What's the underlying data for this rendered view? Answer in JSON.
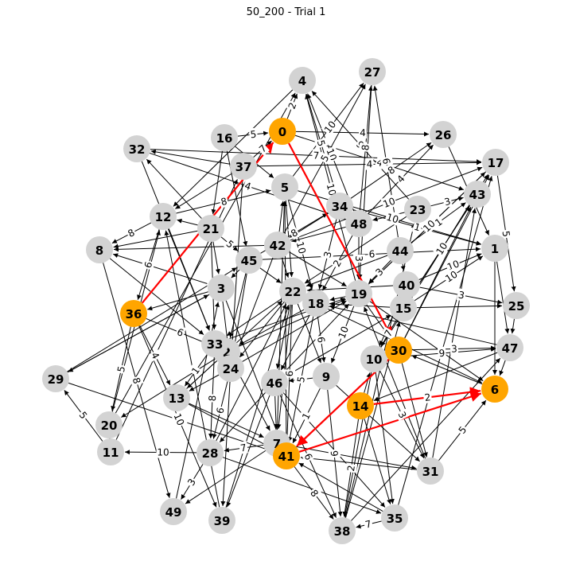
{
  "title": "50_200 - Trial 1",
  "colors": {
    "node_default": "#d3d3d3",
    "node_path": "#ffa500",
    "edge_default": "#000000",
    "edge_path": "#ff0000",
    "label_bg": "#ffffff"
  },
  "nodes": [
    {
      "id": "0",
      "path": true
    },
    {
      "id": "1",
      "path": false
    },
    {
      "id": "2",
      "path": false
    },
    {
      "id": "3",
      "path": false
    },
    {
      "id": "4",
      "path": false
    },
    {
      "id": "5",
      "path": false
    },
    {
      "id": "6",
      "path": true
    },
    {
      "id": "7",
      "path": false
    },
    {
      "id": "8",
      "path": false
    },
    {
      "id": "9",
      "path": false
    },
    {
      "id": "10",
      "path": false
    },
    {
      "id": "11",
      "path": false
    },
    {
      "id": "12",
      "path": false
    },
    {
      "id": "13",
      "path": false
    },
    {
      "id": "14",
      "path": true
    },
    {
      "id": "15",
      "path": false
    },
    {
      "id": "16",
      "path": false
    },
    {
      "id": "17",
      "path": false
    },
    {
      "id": "18",
      "path": false
    },
    {
      "id": "19",
      "path": false
    },
    {
      "id": "20",
      "path": false
    },
    {
      "id": "21",
      "path": false
    },
    {
      "id": "22",
      "path": false
    },
    {
      "id": "23",
      "path": false
    },
    {
      "id": "24",
      "path": false
    },
    {
      "id": "25",
      "path": false
    },
    {
      "id": "26",
      "path": false
    },
    {
      "id": "27",
      "path": false
    },
    {
      "id": "28",
      "path": false
    },
    {
      "id": "29",
      "path": false
    },
    {
      "id": "30",
      "path": true
    },
    {
      "id": "31",
      "path": false
    },
    {
      "id": "32",
      "path": false
    },
    {
      "id": "33",
      "path": false
    },
    {
      "id": "34",
      "path": false
    },
    {
      "id": "35",
      "path": false
    },
    {
      "id": "36",
      "path": true
    },
    {
      "id": "37",
      "path": false
    },
    {
      "id": "38",
      "path": false
    },
    {
      "id": "39",
      "path": false
    },
    {
      "id": "40",
      "path": false
    },
    {
      "id": "41",
      "path": true
    },
    {
      "id": "42",
      "path": false
    },
    {
      "id": "43",
      "path": false
    },
    {
      "id": "44",
      "path": false
    },
    {
      "id": "45",
      "path": false
    },
    {
      "id": "46",
      "path": false
    },
    {
      "id": "47",
      "path": false
    },
    {
      "id": "48",
      "path": false
    },
    {
      "id": "49",
      "path": false
    }
  ],
  "edges": [
    {
      "from": "36",
      "to": "0",
      "w": "5",
      "path": true
    },
    {
      "from": "0",
      "to": "30",
      "w": "",
      "path": true
    },
    {
      "from": "30",
      "to": "41",
      "w": "",
      "path": true
    },
    {
      "from": "41",
      "to": "6",
      "w": "",
      "path": true
    },
    {
      "from": "14",
      "to": "6",
      "w": "2",
      "path": true
    },
    {
      "from": "0",
      "to": "26",
      "w": "4",
      "path": false
    },
    {
      "from": "0",
      "to": "43",
      "w": "4",
      "path": false
    },
    {
      "from": "0",
      "to": "4",
      "w": "2",
      "path": false
    },
    {
      "from": "16",
      "to": "0",
      "w": "5",
      "path": false
    },
    {
      "from": "37",
      "to": "0",
      "w": "7",
      "path": false
    },
    {
      "from": "48",
      "to": "4",
      "w": "10",
      "path": false
    },
    {
      "from": "34",
      "to": "4",
      "w": "5",
      "path": false
    },
    {
      "from": "19",
      "to": "4",
      "w": "10",
      "path": false
    },
    {
      "from": "23",
      "to": "4",
      "w": "9",
      "path": false
    },
    {
      "from": "4",
      "to": "12",
      "w": "",
      "path": false
    },
    {
      "from": "48",
      "to": "27",
      "w": "8",
      "path": false
    },
    {
      "from": "5",
      "to": "27",
      "w": "10",
      "path": false
    },
    {
      "from": "42",
      "to": "27",
      "w": "5",
      "path": false
    },
    {
      "from": "44",
      "to": "27",
      "w": "6",
      "path": false
    },
    {
      "from": "34",
      "to": "26",
      "w": "8",
      "path": false
    },
    {
      "from": "48",
      "to": "26",
      "w": "4",
      "path": false
    },
    {
      "from": "32",
      "to": "17",
      "w": "7",
      "path": false
    },
    {
      "from": "37",
      "to": "17",
      "w": "4",
      "path": false
    },
    {
      "from": "42",
      "to": "17",
      "w": "10",
      "path": false
    },
    {
      "from": "19",
      "to": "17",
      "w": "10",
      "path": false
    },
    {
      "from": "23",
      "to": "43",
      "w": "3",
      "path": false
    },
    {
      "from": "44",
      "to": "43",
      "w": "1",
      "path": false
    },
    {
      "from": "15",
      "to": "43",
      "w": "10",
      "path": false
    },
    {
      "from": "17",
      "to": "25",
      "w": "5",
      "path": false
    },
    {
      "from": "5",
      "to": "1",
      "w": "10",
      "path": false
    },
    {
      "from": "34",
      "to": "1",
      "w": "1",
      "path": false
    },
    {
      "from": "45",
      "to": "1",
      "w": "6",
      "path": false
    },
    {
      "from": "40",
      "to": "1",
      "w": "10",
      "path": false
    },
    {
      "from": "15",
      "to": "1",
      "w": "10",
      "path": false
    },
    {
      "from": "1",
      "to": "47",
      "w": "",
      "path": false
    },
    {
      "from": "1",
      "to": "6",
      "w": "",
      "path": false
    },
    {
      "from": "40",
      "to": "25",
      "w": "3",
      "path": false
    },
    {
      "from": "15",
      "to": "25",
      "w": "",
      "path": false
    },
    {
      "from": "25",
      "to": "47",
      "w": "",
      "path": false
    },
    {
      "from": "30",
      "to": "47",
      "w": "3",
      "path": false
    },
    {
      "from": "10",
      "to": "47",
      "w": "9",
      "path": false
    },
    {
      "from": "47",
      "to": "6",
      "w": "",
      "path": false
    },
    {
      "from": "19",
      "to": "6",
      "w": "",
      "path": false
    },
    {
      "from": "18",
      "to": "6",
      "w": "",
      "path": false
    },
    {
      "from": "31",
      "to": "6",
      "w": "5",
      "path": false
    },
    {
      "from": "12",
      "to": "8",
      "w": "8",
      "path": false
    },
    {
      "from": "21",
      "to": "8",
      "w": "",
      "path": false
    },
    {
      "from": "42",
      "to": "8",
      "w": "",
      "path": false
    },
    {
      "from": "8",
      "to": "49",
      "w": "8",
      "path": false
    },
    {
      "from": "32",
      "to": "48",
      "w": "4",
      "path": false
    },
    {
      "from": "12",
      "to": "5",
      "w": "8",
      "path": false
    },
    {
      "from": "21",
      "to": "12",
      "w": "",
      "path": false
    },
    {
      "from": "21",
      "to": "32",
      "w": "",
      "path": false
    },
    {
      "from": "16",
      "to": "45",
      "w": "",
      "path": false
    },
    {
      "from": "21",
      "to": "45",
      "w": "5",
      "path": false
    },
    {
      "from": "45",
      "to": "34",
      "w": "8",
      "path": false
    },
    {
      "from": "42",
      "to": "5",
      "w": "",
      "path": false
    },
    {
      "from": "42",
      "to": "22",
      "w": "",
      "path": false
    },
    {
      "from": "5",
      "to": "18",
      "w": "10",
      "path": false
    },
    {
      "from": "34",
      "to": "18",
      "w": "3",
      "path": false
    },
    {
      "from": "48",
      "to": "18",
      "w": "2",
      "path": false
    },
    {
      "from": "48",
      "to": "19",
      "w": "3",
      "path": false
    },
    {
      "from": "44",
      "to": "19",
      "w": "3",
      "path": false
    },
    {
      "from": "19",
      "to": "30",
      "w": "",
      "path": false
    },
    {
      "from": "40",
      "to": "10",
      "w": "",
      "path": false
    },
    {
      "from": "15",
      "to": "10",
      "w": "7",
      "path": false
    },
    {
      "from": "3",
      "to": "36",
      "w": "",
      "path": false
    },
    {
      "from": "12",
      "to": "36",
      "w": "6",
      "path": false
    },
    {
      "from": "36",
      "to": "13",
      "w": "4",
      "path": false
    },
    {
      "from": "36",
      "to": "2",
      "w": "6",
      "path": false
    },
    {
      "from": "36",
      "to": "20",
      "w": "5",
      "path": false
    },
    {
      "from": "3",
      "to": "8",
      "w": "",
      "path": false
    },
    {
      "from": "3",
      "to": "29",
      "w": "",
      "path": false
    },
    {
      "from": "12",
      "to": "33",
      "w": "",
      "path": false
    },
    {
      "from": "21",
      "to": "33",
      "w": "6",
      "path": false
    },
    {
      "from": "33",
      "to": "13",
      "w": "1",
      "path": false
    },
    {
      "from": "2",
      "to": "20",
      "w": "",
      "path": false
    },
    {
      "from": "24",
      "to": "13",
      "w": "",
      "path": false
    },
    {
      "from": "20",
      "to": "11",
      "w": "",
      "path": false
    },
    {
      "from": "11",
      "to": "29",
      "w": "5",
      "path": false
    },
    {
      "from": "36",
      "to": "39",
      "w": "10",
      "path": false
    },
    {
      "from": "29",
      "to": "41",
      "w": "",
      "path": false
    },
    {
      "from": "28",
      "to": "11",
      "w": "10",
      "path": false
    },
    {
      "from": "28",
      "to": "49",
      "w": "3",
      "path": false
    },
    {
      "from": "7",
      "to": "49",
      "w": "",
      "path": false
    },
    {
      "from": "7",
      "to": "28",
      "w": "7",
      "path": false
    },
    {
      "from": "46",
      "to": "28",
      "w": "",
      "path": false
    },
    {
      "from": "24",
      "to": "28",
      "w": "6",
      "path": false
    },
    {
      "from": "33",
      "to": "28",
      "w": "8",
      "path": false
    },
    {
      "from": "13",
      "to": "7",
      "w": "",
      "path": false
    },
    {
      "from": "2",
      "to": "7",
      "w": "",
      "path": false
    },
    {
      "from": "22",
      "to": "7",
      "w": "",
      "path": false
    },
    {
      "from": "24",
      "to": "39",
      "w": "",
      "path": false
    },
    {
      "from": "46",
      "to": "39",
      "w": "",
      "path": false
    },
    {
      "from": "46",
      "to": "38",
      "w": "6",
      "path": false
    },
    {
      "from": "9",
      "to": "38",
      "w": "9",
      "path": false
    },
    {
      "from": "41",
      "to": "38",
      "w": "8",
      "path": false
    },
    {
      "from": "14",
      "to": "38",
      "w": "2",
      "path": false
    },
    {
      "from": "10",
      "to": "38",
      "w": "",
      "path": false
    },
    {
      "from": "35",
      "to": "38",
      "w": "7",
      "path": false
    },
    {
      "from": "14",
      "to": "35",
      "w": "",
      "path": false
    },
    {
      "from": "10",
      "to": "35",
      "w": "",
      "path": false
    },
    {
      "from": "28",
      "to": "35",
      "w": "",
      "path": false
    },
    {
      "from": "46",
      "to": "35",
      "w": "",
      "path": false
    },
    {
      "from": "30",
      "to": "31",
      "w": "",
      "path": false
    },
    {
      "from": "10",
      "to": "31",
      "w": "3",
      "path": false
    },
    {
      "from": "7",
      "to": "31",
      "w": "",
      "path": false
    },
    {
      "from": "9",
      "to": "31",
      "w": "",
      "path": false
    },
    {
      "from": "18",
      "to": "9",
      "w": "6",
      "path": false
    },
    {
      "from": "22",
      "to": "9",
      "w": "",
      "path": false
    },
    {
      "from": "19",
      "to": "9",
      "w": "10",
      "path": false
    },
    {
      "from": "9",
      "to": "46",
      "w": "",
      "path": false
    },
    {
      "from": "22",
      "to": "46",
      "w": "",
      "path": false
    },
    {
      "from": "18",
      "to": "46",
      "w": "",
      "path": false
    },
    {
      "from": "46",
      "to": "7",
      "w": "",
      "path": false
    },
    {
      "from": "18",
      "to": "41",
      "w": "5",
      "path": false
    },
    {
      "from": "9",
      "to": "41",
      "w": "1",
      "path": false
    },
    {
      "from": "22",
      "to": "41",
      "w": "6",
      "path": false
    },
    {
      "from": "3",
      "to": "41",
      "w": "",
      "path": false
    },
    {
      "from": "45",
      "to": "24",
      "w": "",
      "path": false
    },
    {
      "from": "45",
      "to": "2",
      "w": "",
      "path": false
    },
    {
      "from": "22",
      "to": "24",
      "w": "",
      "path": false
    },
    {
      "from": "22",
      "to": "33",
      "w": "",
      "path": false
    },
    {
      "from": "18",
      "to": "2",
      "w": "",
      "path": false
    },
    {
      "from": "42",
      "to": "24",
      "w": "",
      "path": false
    },
    {
      "from": "3",
      "to": "24",
      "w": "",
      "path": false
    },
    {
      "from": "37",
      "to": "24",
      "w": "",
      "path": false
    },
    {
      "from": "37",
      "to": "12",
      "w": "",
      "path": false
    },
    {
      "from": "37",
      "to": "32",
      "w": "",
      "path": false
    },
    {
      "from": "21",
      "to": "3",
      "w": "",
      "path": false
    },
    {
      "from": "45",
      "to": "3",
      "w": "",
      "path": false
    },
    {
      "from": "15",
      "to": "18",
      "w": "",
      "path": false
    },
    {
      "from": "19",
      "to": "18",
      "w": "",
      "path": false
    },
    {
      "from": "47",
      "to": "18",
      "w": "",
      "path": false
    },
    {
      "from": "40",
      "to": "22",
      "w": "",
      "path": false
    },
    {
      "from": "44",
      "to": "22",
      "w": "",
      "path": false
    },
    {
      "from": "23",
      "to": "22",
      "w": "",
      "path": false
    },
    {
      "from": "23",
      "to": "48",
      "w": "",
      "path": false
    },
    {
      "from": "17",
      "to": "19",
      "w": "",
      "path": false
    },
    {
      "from": "43",
      "to": "15",
      "w": "",
      "path": false
    },
    {
      "from": "30",
      "to": "10",
      "w": "",
      "path": false
    },
    {
      "from": "14",
      "to": "10",
      "w": "",
      "path": false
    },
    {
      "from": "47",
      "to": "14",
      "w": "",
      "path": false
    },
    {
      "from": "6",
      "to": "30",
      "w": "",
      "path": false
    },
    {
      "from": "44",
      "to": "40",
      "w": "",
      "path": false
    },
    {
      "from": "40",
      "to": "15",
      "w": "",
      "path": false
    },
    {
      "from": "45",
      "to": "22",
      "w": "",
      "path": false
    },
    {
      "from": "5",
      "to": "22",
      "w": "",
      "path": false
    },
    {
      "from": "16",
      "to": "21",
      "w": "",
      "path": false
    },
    {
      "from": "16",
      "to": "5",
      "w": "",
      "path": false
    },
    {
      "from": "34",
      "to": "48",
      "w": "",
      "path": false
    },
    {
      "from": "33",
      "to": "24",
      "w": "",
      "path": false
    },
    {
      "from": "2",
      "to": "13",
      "w": "",
      "path": false
    },
    {
      "from": "13",
      "to": "41",
      "w": "",
      "path": false
    },
    {
      "from": "29",
      "to": "3",
      "w": "",
      "path": false
    },
    {
      "from": "32",
      "to": "33",
      "w": "",
      "path": false
    },
    {
      "from": "8",
      "to": "33",
      "w": "",
      "path": false
    },
    {
      "from": "20",
      "to": "12",
      "w": "",
      "path": false
    },
    {
      "from": "39",
      "to": "22",
      "w": "",
      "path": false
    },
    {
      "from": "31",
      "to": "41",
      "w": "",
      "path": false
    },
    {
      "from": "35",
      "to": "41",
      "w": "",
      "path": false
    },
    {
      "from": "31",
      "to": "19",
      "w": "",
      "path": false
    },
    {
      "from": "31",
      "to": "43",
      "w": "",
      "path": false
    },
    {
      "from": "35",
      "to": "17",
      "w": "",
      "path": false
    },
    {
      "from": "38",
      "to": "47",
      "w": "",
      "path": false
    },
    {
      "from": "38",
      "to": "15",
      "w": "",
      "path": false
    },
    {
      "from": "38",
      "to": "23",
      "w": "",
      "path": false
    },
    {
      "from": "26",
      "to": "1",
      "w": "",
      "path": false
    },
    {
      "from": "27",
      "to": "19",
      "w": "",
      "path": false
    },
    {
      "from": "42",
      "to": "19",
      "w": "",
      "path": false
    },
    {
      "from": "48",
      "to": "42",
      "w": "",
      "path": false
    },
    {
      "from": "34",
      "to": "42",
      "w": "",
      "path": false
    },
    {
      "from": "30",
      "to": "43",
      "w": "",
      "path": false
    },
    {
      "from": "30",
      "to": "17",
      "w": "",
      "path": false
    },
    {
      "from": "10",
      "to": "17",
      "w": "",
      "path": false
    },
    {
      "from": "46",
      "to": "19",
      "w": "",
      "path": false
    },
    {
      "from": "46",
      "to": "15",
      "w": "",
      "path": false
    },
    {
      "from": "24",
      "to": "19",
      "w": "",
      "path": false
    },
    {
      "from": "2",
      "to": "19",
      "w": "",
      "path": false
    },
    {
      "from": "33",
      "to": "19",
      "w": "",
      "path": false
    },
    {
      "from": "13",
      "to": "22",
      "w": "",
      "path": false
    },
    {
      "from": "28",
      "to": "22",
      "w": "",
      "path": false
    },
    {
      "from": "41",
      "to": "5",
      "w": "",
      "path": false
    },
    {
      "from": "7",
      "to": "5",
      "w": "",
      "path": false
    },
    {
      "from": "39",
      "to": "12",
      "w": "",
      "path": false
    },
    {
      "from": "49",
      "to": "3",
      "w": "",
      "path": false
    },
    {
      "from": "11",
      "to": "37",
      "w": "",
      "path": false
    },
    {
      "from": "20",
      "to": "4",
      "w": "",
      "path": false
    },
    {
      "from": "29",
      "to": "45",
      "w": "",
      "path": false
    }
  ]
}
